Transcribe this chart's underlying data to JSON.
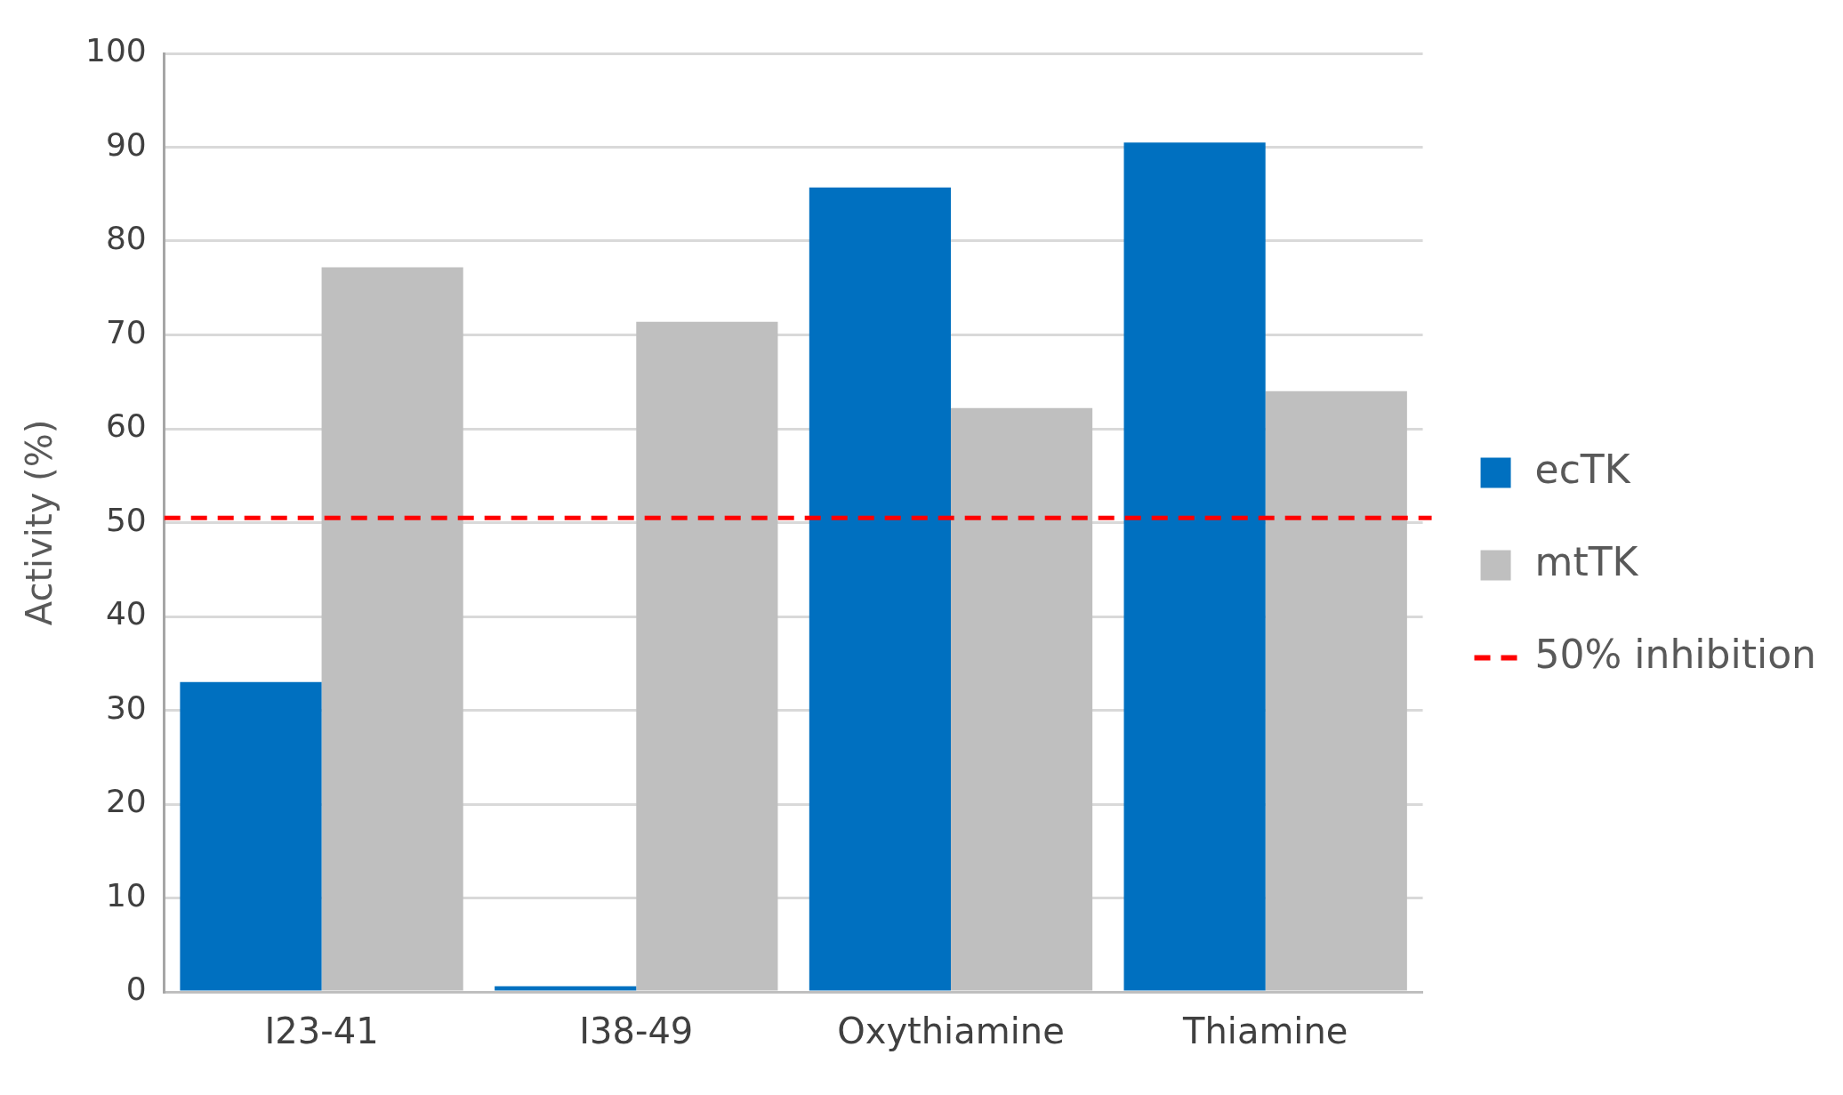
{
  "chart_data": {
    "type": "bar",
    "ylabel": "Activity (%)",
    "categories": [
      "I23-41",
      "I38-49",
      "Oxythiamine",
      "Thiamine"
    ],
    "series": [
      {
        "name": "ecTK",
        "color": "#0070c0",
        "values": [
          33,
          0.6,
          85.7,
          90.5
        ]
      },
      {
        "name": "mtTK",
        "color": "#bfbfbf",
        "values": [
          77.2,
          71.4,
          62.2,
          64
        ]
      }
    ],
    "ylim": [
      0,
      100
    ],
    "yticks": [
      0,
      10,
      20,
      30,
      40,
      50,
      60,
      70,
      80,
      90,
      100
    ],
    "grid": "y",
    "legend": "right",
    "ref_lines": [
      {
        "axis": "y",
        "value": 50.5,
        "label": "50% inhibition",
        "color": "#ff0000",
        "line_style": "dashed"
      }
    ]
  }
}
